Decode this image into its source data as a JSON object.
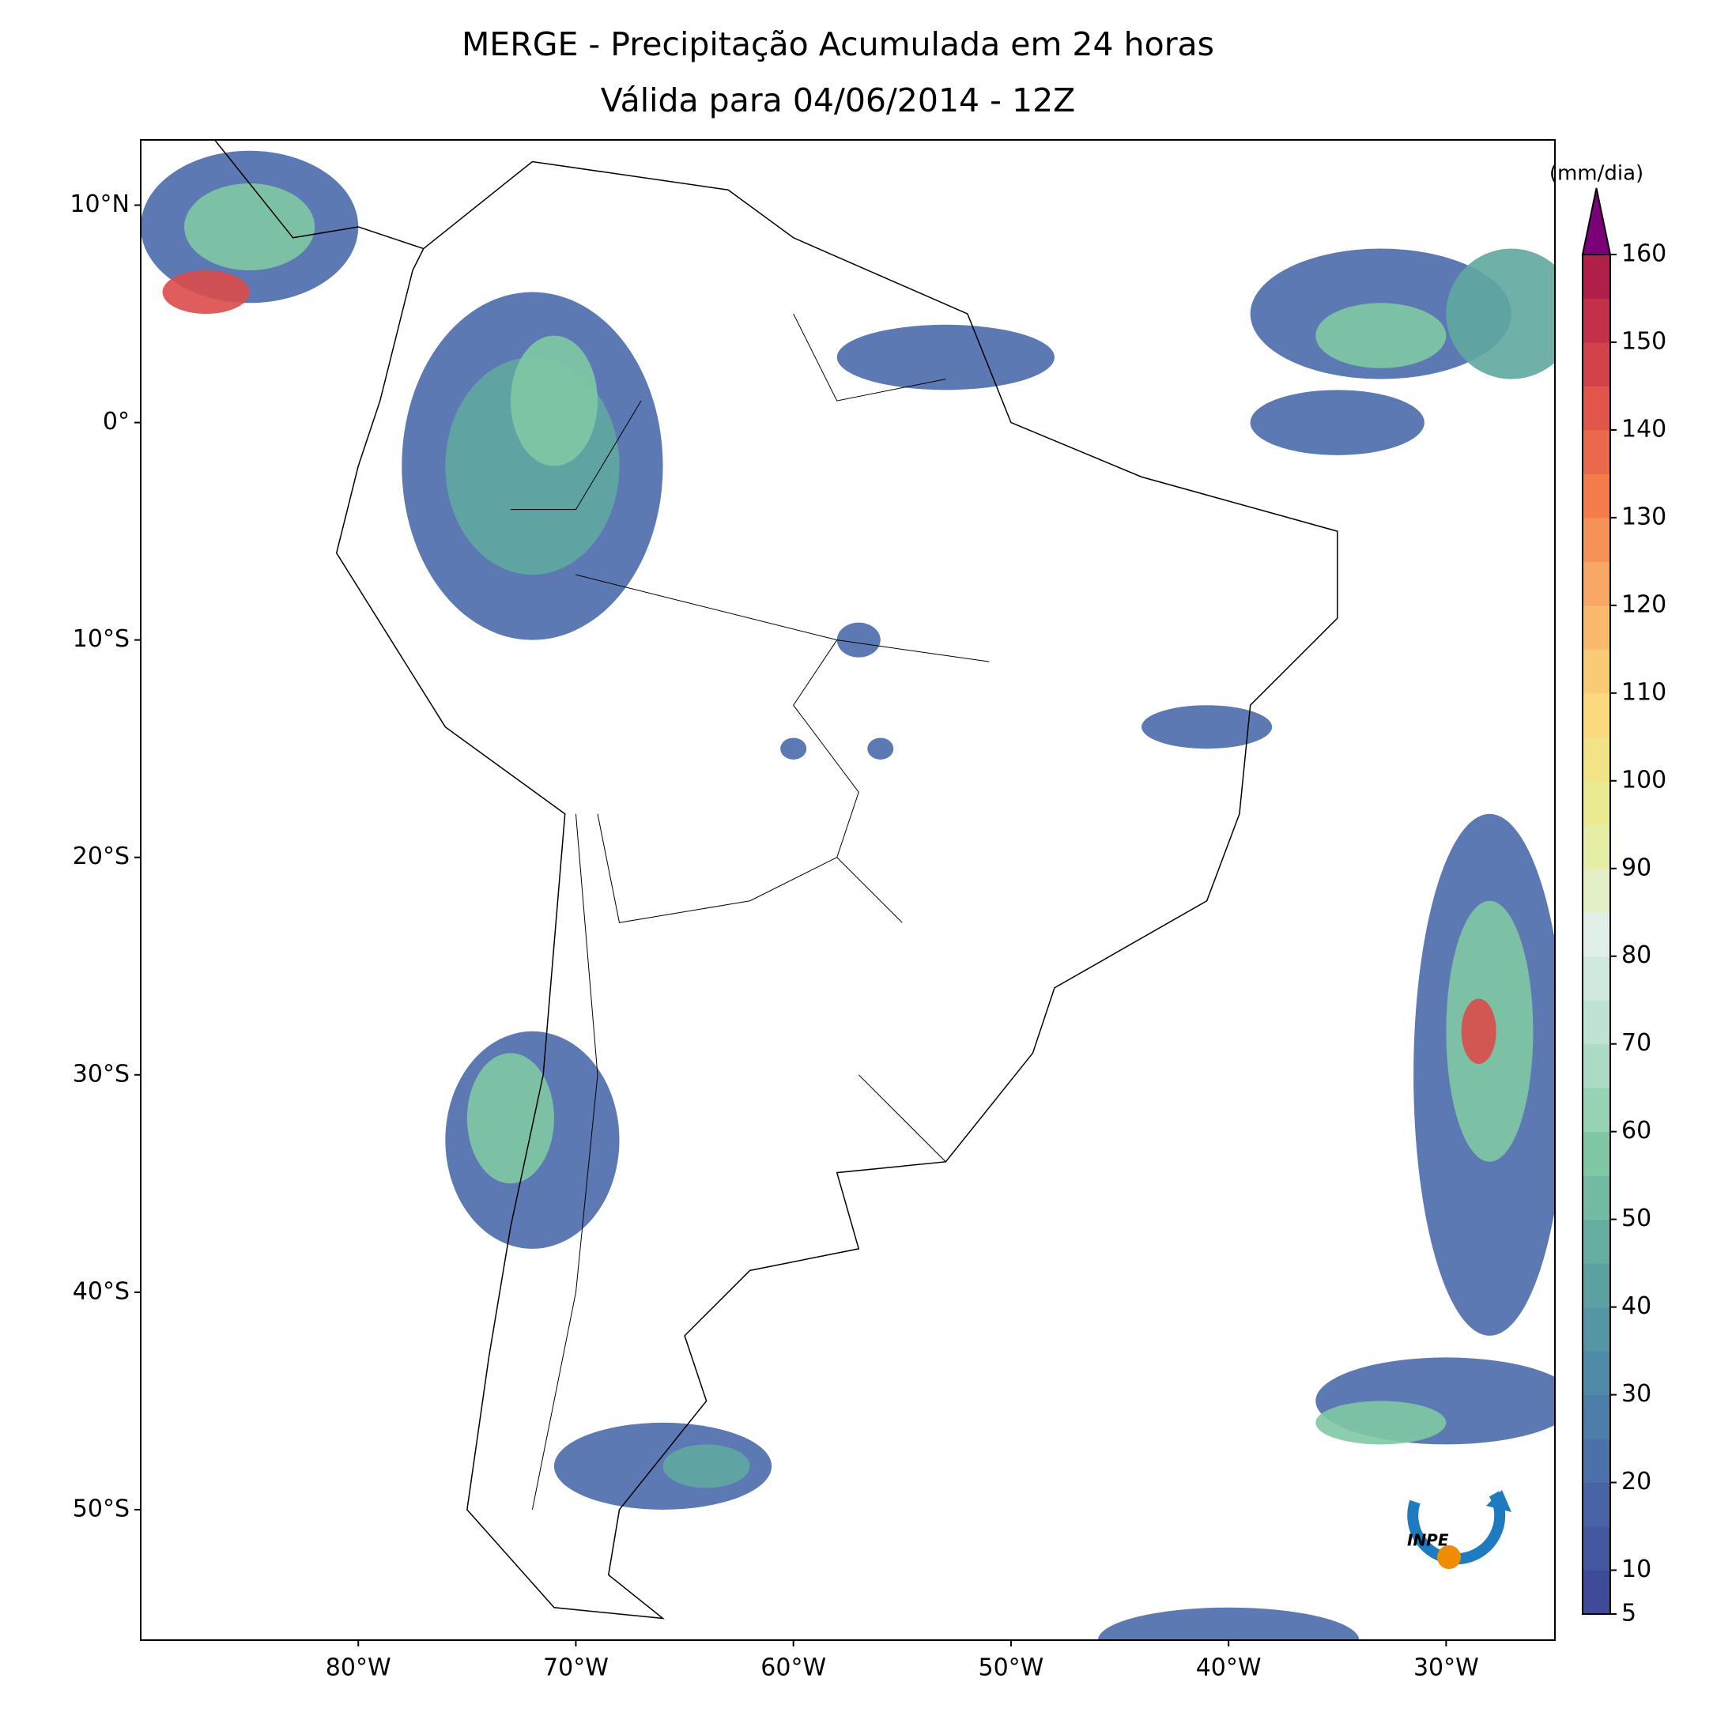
{
  "chart_data": {
    "type": "map",
    "title": "MERGE - Precipitação Acumulada em 24 horas",
    "subtitle": "Válida para 04/06/2014 - 12Z",
    "xlim": [
      -90,
      -25
    ],
    "ylim": [
      -56,
      13
    ],
    "xticks": [
      {
        "value": -80,
        "label": "80°W"
      },
      {
        "value": -70,
        "label": "70°W"
      },
      {
        "value": -60,
        "label": "60°W"
      },
      {
        "value": -50,
        "label": "50°W"
      },
      {
        "value": -40,
        "label": "40°W"
      },
      {
        "value": -30,
        "label": "30°W"
      }
    ],
    "yticks": [
      {
        "value": 10,
        "label": "10°N"
      },
      {
        "value": 0,
        "label": "0°"
      },
      {
        "value": -10,
        "label": "10°S"
      },
      {
        "value": -20,
        "label": "20°S"
      },
      {
        "value": -30,
        "label": "30°S"
      },
      {
        "value": -40,
        "label": "40°S"
      },
      {
        "value": -50,
        "label": "50°S"
      }
    ],
    "colorbar": {
      "label": "(mm/dia)",
      "lim": [
        5,
        160
      ],
      "step": 5,
      "ticks": [
        5,
        10,
        20,
        30,
        40,
        50,
        60,
        70,
        80,
        90,
        100,
        110,
        120,
        130,
        140,
        150,
        160
      ],
      "colors": [
        "#3f4a99",
        "#4a6aab",
        "#4f8aa8",
        "#5fa8a0",
        "#80c8a4",
        "#b6e0cc",
        "#e0f0e8",
        "#e8ee94",
        "#fbdb7e",
        "#f9b26a",
        "#f47c4b",
        "#dc4b4a",
        "#b01f48"
      ],
      "extend_color": "#7a0177"
    },
    "logo_text": "INPE"
  }
}
